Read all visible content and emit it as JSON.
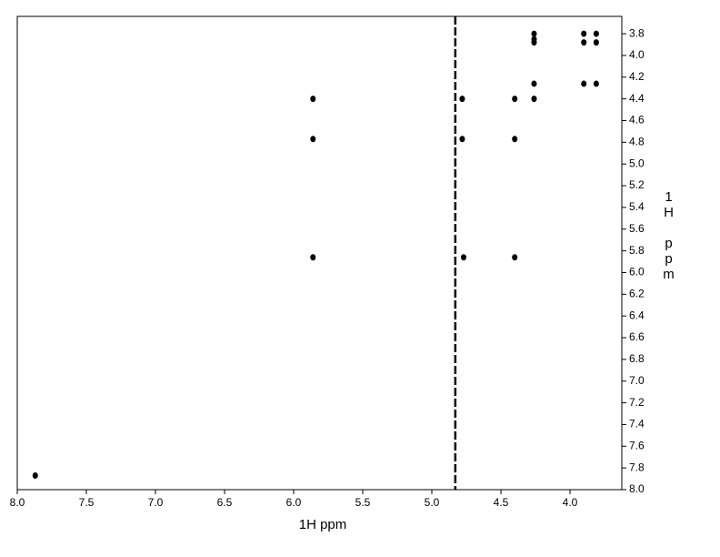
{
  "chart_data": {
    "type": "scatter",
    "xlabel": "1H ppm",
    "ylabel": "1H ppm",
    "x": [
      7.87,
      5.86,
      5.86,
      5.86,
      4.78,
      4.78,
      4.77,
      4.4,
      4.4,
      4.4,
      4.26,
      4.26,
      4.26,
      4.26,
      4.26,
      3.9,
      3.9,
      3.81,
      3.81,
      3.9,
      3.81
    ],
    "values": [
      7.87,
      4.4,
      4.77,
      5.86,
      4.4,
      4.77,
      5.86,
      4.4,
      4.77,
      5.86,
      3.8,
      3.85,
      3.88,
      4.26,
      4.4,
      3.8,
      3.88,
      3.8,
      3.88,
      4.26,
      4.26
    ],
    "color": "#000000",
    "vertical_line_x": 4.83,
    "xlim": [
      8.0,
      3.625
    ],
    "ylim": [
      3.64,
      8.0
    ],
    "y_inverted": true,
    "xticks": [
      {
        "value": 8,
        "label": "8.0"
      },
      7.5,
      {
        "value": 7,
        "label": "7.0"
      },
      6.5,
      {
        "value": 6,
        "label": "6.0"
      },
      5.5,
      {
        "value": 5,
        "label": "5.0"
      },
      4.5,
      {
        "value": 4,
        "label": "4.0"
      }
    ],
    "yticks": [
      3.8,
      {
        "value": 4,
        "label": "4.0"
      },
      4.2,
      4.4,
      4.6,
      4.8,
      {
        "value": 5,
        "label": "5.0"
      },
      5.2,
      5.4,
      5.6,
      5.8,
      {
        "value": 6,
        "label": "6.0"
      },
      6.2,
      6.4,
      6.6,
      6.8,
      {
        "value": 7,
        "label": "7.0"
      },
      7.2,
      7.4,
      7.6,
      7.8,
      {
        "value": 8,
        "label": "8.0"
      }
    ],
    "grid": false
  }
}
